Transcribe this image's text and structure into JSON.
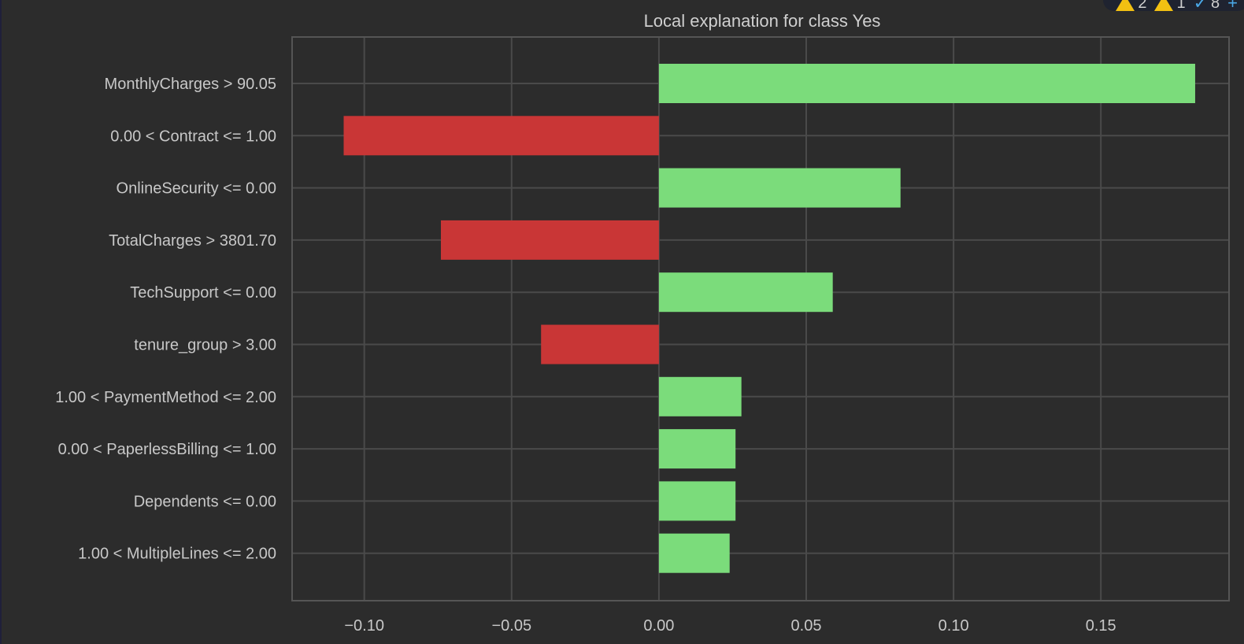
{
  "status": {
    "warnings_a": "2",
    "warnings_b": "1",
    "checks": "8"
  },
  "colors": {
    "positive": "#7bdc7b",
    "negative": "#c93636",
    "grid": "#4a4a4a",
    "frame": "#555555",
    "background": "#2c2c2c"
  },
  "chart_data": {
    "type": "bar",
    "orientation": "horizontal",
    "title": "Local explanation for class Yes",
    "xlabel": "",
    "ylabel": "",
    "xlim": [
      -0.1245,
      0.1935
    ],
    "xticks": [
      -0.1,
      -0.05,
      0.0,
      0.05,
      0.1,
      0.15
    ],
    "xtick_labels": [
      "−0.10",
      "−0.05",
      "0.00",
      "0.05",
      "0.10",
      "0.15"
    ],
    "grid": true,
    "categories": [
      "MonthlyCharges > 90.05",
      "0.00 < Contract <= 1.00",
      "OnlineSecurity <= 0.00",
      "TotalCharges > 3801.70",
      "TechSupport <= 0.00",
      "tenure_group > 3.00",
      "1.00 < PaymentMethod <= 2.00",
      "0.00 < PaperlessBilling <= 1.00",
      "Dependents <= 0.00",
      "1.00 < MultipleLines <= 2.00"
    ],
    "values": [
      0.182,
      -0.107,
      0.082,
      -0.074,
      0.059,
      -0.04,
      0.028,
      0.026,
      0.026,
      0.024
    ]
  }
}
